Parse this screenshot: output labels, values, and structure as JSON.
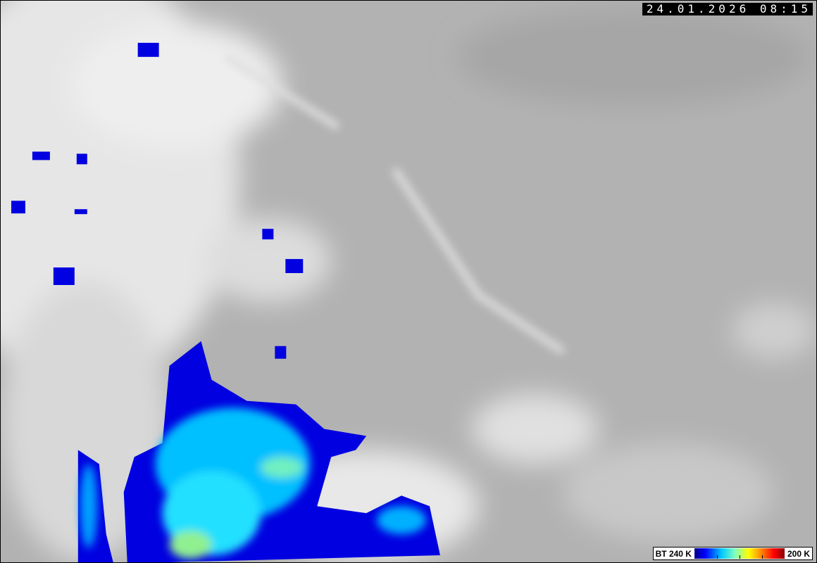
{
  "timestamp": "24.01.2026 08:15",
  "legend": {
    "left_label": "BT 240 K",
    "right_label": "200 K",
    "colors": [
      "#00008c",
      "#0000ff",
      "#00c8ff",
      "#80ffc0",
      "#ffff00",
      "#ff8000",
      "#ff0000",
      "#8c0000"
    ]
  }
}
